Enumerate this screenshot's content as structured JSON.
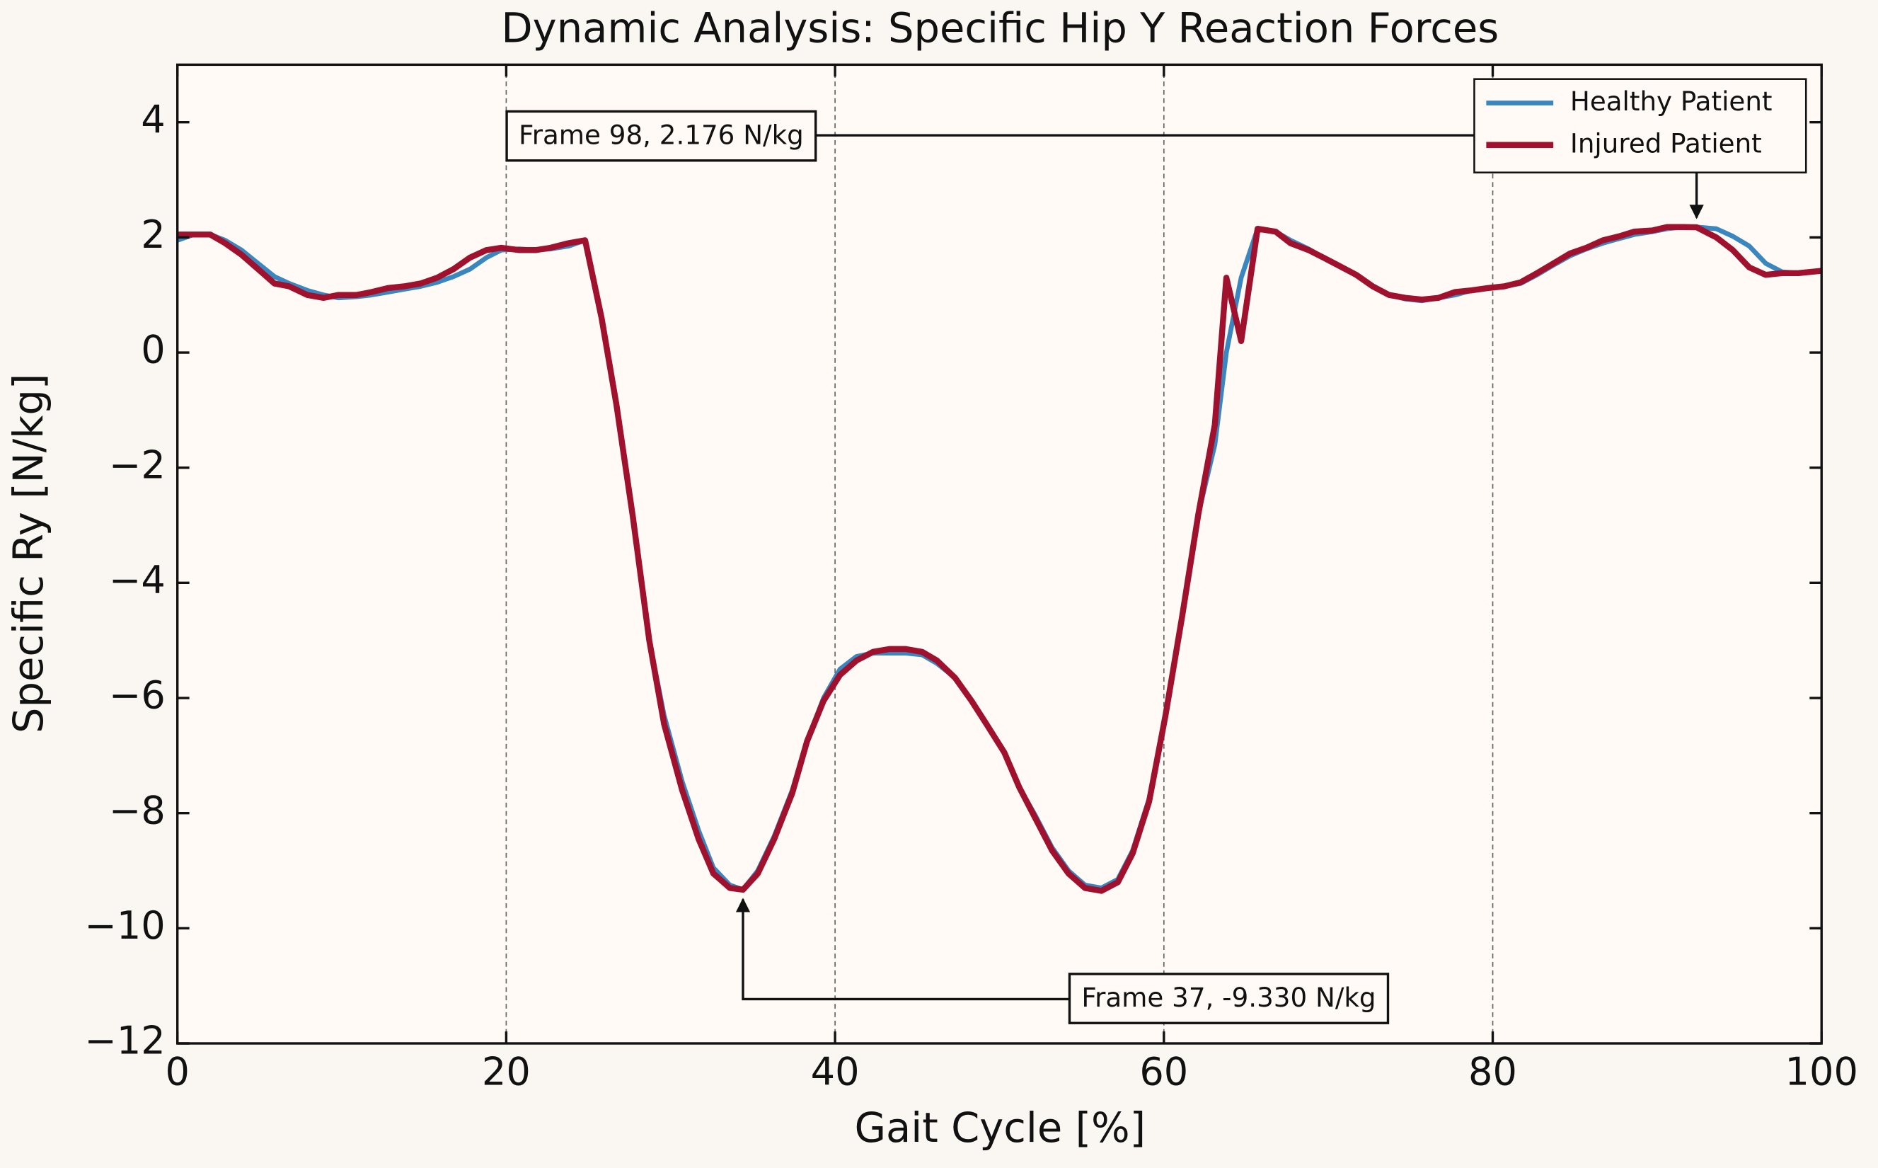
{
  "chart_data": {
    "type": "line",
    "title": "Dynamic Analysis: Specific Hip Y Reaction Forces",
    "xlabel": "Gait Cycle [%]",
    "ylabel": "Specific Ry [N/kg]",
    "xlim": [
      0,
      100
    ],
    "ylim": [
      -12,
      5
    ],
    "xticks": [
      0,
      20,
      40,
      60,
      80,
      100
    ],
    "yticks": [
      {
        "value": -12,
        "label": "−12"
      },
      {
        "value": -10,
        "label": "−10"
      },
      {
        "value": -8,
        "label": "−8"
      },
      {
        "value": -6,
        "label": "−6"
      },
      {
        "value": -4,
        "label": "−4"
      },
      {
        "value": -2,
        "label": "−2"
      },
      0,
      2,
      4
    ],
    "xgrid": true,
    "legend": "upper right",
    "x": [
      0,
      1.0,
      2.0,
      2.9,
      3.9,
      4.9,
      5.9,
      6.8,
      7.9,
      8.9,
      9.8,
      10.9,
      11.8,
      12.8,
      13.8,
      14.8,
      15.8,
      16.8,
      17.8,
      18.8,
      19.7,
      20.8,
      21.8,
      22.7,
      23.8,
      24.8,
      25.8,
      26.7,
      27.7,
      28.7,
      29.6,
      30.7,
      31.7,
      32.6,
      33.6,
      34.4,
      35.3,
      36.3,
      37.4,
      38.3,
      39.3,
      40.3,
      41.3,
      42.3,
      43.3,
      44.3,
      45.3,
      46.2,
      47.3,
      48.3,
      49.2,
      50.3,
      51.2,
      52.2,
      53.2,
      54.2,
      55.2,
      56.2,
      57.2,
      58.1,
      59.1,
      60.1,
      61.1,
      62.1,
      63.1,
      63.8,
      64.7,
      65.7,
      66.8,
      67.7,
      68.8,
      69.7,
      70.7,
      71.7,
      72.7,
      73.7,
      74.7,
      75.7,
      76.7,
      77.7,
      78.7,
      79.7,
      80.7,
      81.7,
      82.7,
      83.7,
      84.7,
      85.7,
      86.7,
      87.7,
      88.6,
      89.7,
      90.6,
      91.6,
      92.4,
      93.6,
      94.6,
      95.6,
      96.6,
      97.6,
      98.6,
      100
    ],
    "series": [
      {
        "name": "Healthy Patient",
        "color": "#3a87c0",
        "width": 4,
        "values": [
          1.95,
          2.05,
          2.05,
          1.95,
          1.78,
          1.55,
          1.32,
          1.2,
          1.08,
          1.0,
          0.95,
          0.97,
          1.0,
          1.05,
          1.1,
          1.15,
          1.22,
          1.32,
          1.45,
          1.65,
          1.78,
          1.8,
          1.78,
          1.8,
          1.85,
          1.95,
          0.6,
          -0.9,
          -2.85,
          -5.0,
          -6.3,
          -7.45,
          -8.3,
          -8.95,
          -9.25,
          -9.33,
          -9.0,
          -8.4,
          -7.6,
          -6.75,
          -6.0,
          -5.5,
          -5.28,
          -5.22,
          -5.22,
          -5.22,
          -5.25,
          -5.4,
          -5.65,
          -6.05,
          -6.45,
          -6.95,
          -7.55,
          -8.05,
          -8.6,
          -9.0,
          -9.25,
          -9.3,
          -9.15,
          -8.65,
          -7.75,
          -6.3,
          -4.6,
          -2.8,
          -1.6,
          0.0,
          1.3,
          2.15,
          2.1,
          1.95,
          1.8,
          1.65,
          1.5,
          1.35,
          1.15,
          1.0,
          0.93,
          0.9,
          0.95,
          1.0,
          1.08,
          1.12,
          1.15,
          1.2,
          1.35,
          1.52,
          1.68,
          1.8,
          1.9,
          1.98,
          2.05,
          2.1,
          2.15,
          2.18,
          2.18,
          2.15,
          2.02,
          1.85,
          1.55,
          1.4,
          1.38,
          1.42
        ]
      },
      {
        "name": "Injured Patient",
        "color": "#a0112e",
        "width": 5,
        "values": [
          2.05,
          2.05,
          2.05,
          1.9,
          1.7,
          1.45,
          1.2,
          1.15,
          1.0,
          0.95,
          1.0,
          1.0,
          1.05,
          1.12,
          1.15,
          1.2,
          1.3,
          1.45,
          1.65,
          1.78,
          1.82,
          1.78,
          1.78,
          1.82,
          1.9,
          1.95,
          0.6,
          -0.9,
          -2.85,
          -5.0,
          -6.45,
          -7.6,
          -8.45,
          -9.05,
          -9.3,
          -9.33,
          -9.05,
          -8.45,
          -7.65,
          -6.75,
          -6.05,
          -5.6,
          -5.35,
          -5.2,
          -5.15,
          -5.15,
          -5.2,
          -5.35,
          -5.65,
          -6.05,
          -6.45,
          -6.95,
          -7.55,
          -8.1,
          -8.65,
          -9.05,
          -9.3,
          -9.35,
          -9.2,
          -8.7,
          -7.8,
          -6.3,
          -4.6,
          -2.8,
          -1.25,
          1.3,
          0.2,
          2.15,
          2.1,
          1.9,
          1.78,
          1.65,
          1.5,
          1.35,
          1.15,
          1.0,
          0.95,
          0.92,
          0.95,
          1.05,
          1.08,
          1.12,
          1.15,
          1.22,
          1.38,
          1.55,
          1.72,
          1.82,
          1.95,
          2.02,
          2.1,
          2.12,
          2.18,
          2.18,
          2.176,
          2.0,
          1.78,
          1.48,
          1.35,
          1.38,
          1.38,
          1.42
        ]
      }
    ],
    "annotations": [
      {
        "text": "Frame 98, 2.176 N/kg",
        "x": 92.4,
        "y": 2.176
      },
      {
        "text": "Frame 37, -9.330 N/kg",
        "x": 34.4,
        "y": -9.33
      }
    ]
  }
}
